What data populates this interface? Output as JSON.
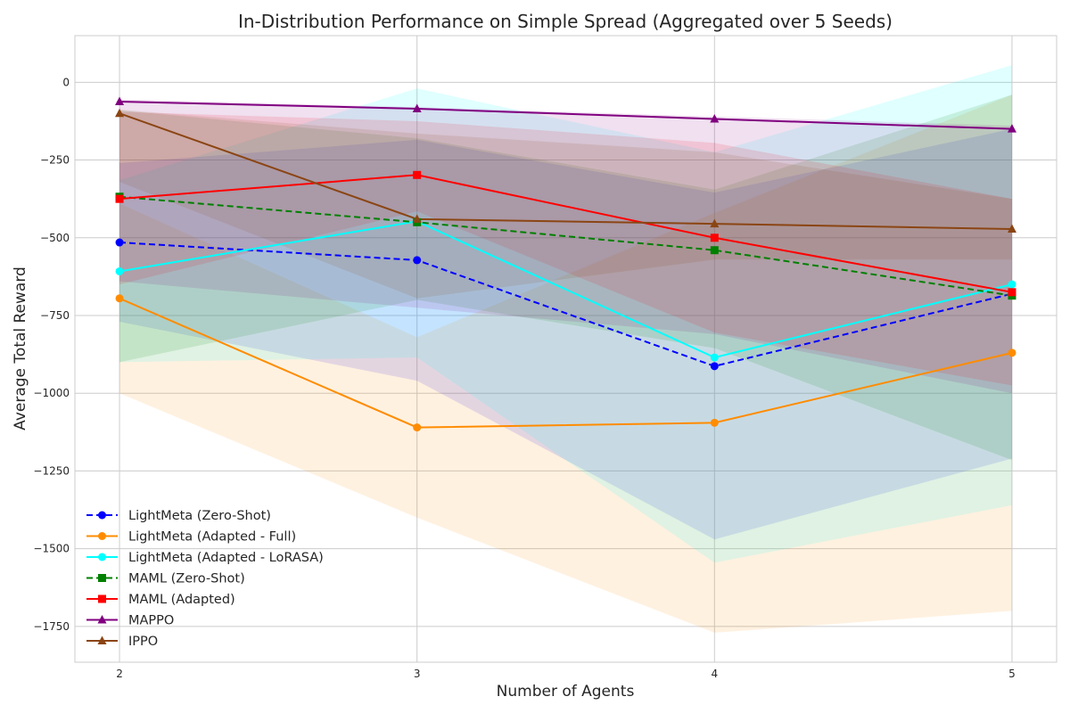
{
  "chart_data": {
    "type": "line",
    "title": "In-Distribution Performance on Simple Spread (Aggregated over 5 Seeds)",
    "xlabel": "Number of Agents",
    "ylabel": "Average Total Reward",
    "x": [
      2,
      3,
      4,
      5
    ],
    "xticks": [
      "2",
      "3",
      "4",
      "5"
    ],
    "yticks": [
      0,
      -250,
      -500,
      -750,
      -1000,
      -1250,
      -1500,
      -1750
    ],
    "ytick_labels": [
      "0",
      "−250",
      "−500",
      "−750",
      "−1000",
      "−1250",
      "−1500",
      "−1750"
    ],
    "xlim": [
      1.85,
      5.15
    ],
    "ylim": [
      -1865,
      150
    ],
    "grid": true,
    "legend_position": "lower-left",
    "series": [
      {
        "name": "LightMeta (Zero-Shot)",
        "color": "#0000ff",
        "dash": "dashed",
        "marker": "circle",
        "values": [
          -515,
          -572,
          -913,
          -680
        ],
        "band_low": [
          -770,
          -960,
          -1470,
          -1210
        ],
        "band_high": [
          -260,
          -185,
          -355,
          -150
        ]
      },
      {
        "name": "LightMeta (Adapted - Full)",
        "color": "#ff8c00",
        "dash": "solid",
        "marker": "circle",
        "values": [
          -695,
          -1110,
          -1095,
          -870
        ],
        "band_low": [
          -1000,
          -1400,
          -1770,
          -1700
        ],
        "band_high": [
          -390,
          -820,
          -420,
          -40
        ]
      },
      {
        "name": "LightMeta (Adapted - LoRASA)",
        "color": "#00ffff",
        "dash": "solid",
        "marker": "circle",
        "values": [
          -608,
          -447,
          -885,
          -650
        ],
        "band_low": [
          -900,
          -885,
          -1545,
          -1360
        ],
        "band_high": [
          -315,
          -20,
          -225,
          55
        ]
      },
      {
        "name": "MAML (Zero-Shot)",
        "color": "#008000",
        "dash": "dashed",
        "marker": "square",
        "values": [
          -368,
          -450,
          -540,
          -686
        ],
        "band_low": [
          -900,
          -700,
          -855,
          -1215
        ],
        "band_high": [
          -90,
          -180,
          -345,
          -40
        ]
      },
      {
        "name": "MAML (Adapted)",
        "color": "#ff0000",
        "dash": "solid",
        "marker": "square",
        "values": [
          -375,
          -298,
          -500,
          -675
        ],
        "band_low": [
          -650,
          -415,
          -805,
          -975
        ],
        "band_high": [
          -95,
          -125,
          -195,
          -375
        ]
      },
      {
        "name": "MAPPO",
        "color": "#800080",
        "dash": "solid",
        "marker": "triangle",
        "values": [
          -62,
          -85,
          -118,
          -150
        ],
        "band_low": [
          -640,
          -725,
          -810,
          -1000
        ],
        "band_high": [
          -55,
          -80,
          -110,
          -140
        ]
      },
      {
        "name": "IPPO",
        "color": "#8b4513",
        "dash": "solid",
        "marker": "triangle",
        "values": [
          -100,
          -440,
          -455,
          -472
        ],
        "band_low": [
          -320,
          -695,
          -570,
          -570
        ],
        "band_high": [
          -88,
          -165,
          -225,
          -375
        ]
      }
    ]
  }
}
